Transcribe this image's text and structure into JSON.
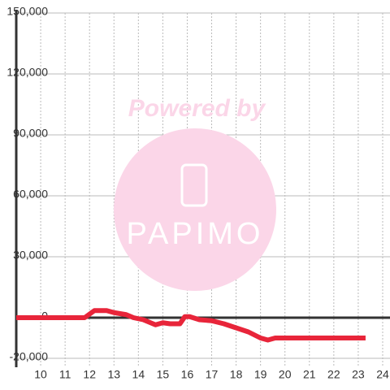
{
  "chart_data": {
    "type": "line",
    "series": [
      {
        "color": "#e8253a",
        "x": [
          9,
          11.8,
          12.2,
          12.7,
          13,
          13.5,
          13.8,
          14.2,
          14.7,
          15,
          15.3,
          15.7,
          15.9,
          16.1,
          16.5,
          17,
          17.5,
          18,
          18.5,
          19,
          19.3,
          19.6,
          20,
          23.3
        ],
        "values": [
          0,
          0,
          3500,
          3500,
          2500,
          1500,
          0,
          -1000,
          -3500,
          -2500,
          -3000,
          -3000,
          500,
          500,
          -1000,
          -1500,
          -3000,
          -5000,
          -7000,
          -10000,
          -11000,
          -10000,
          -10000,
          -10000
        ]
      }
    ],
    "xlim": [
      9,
      24.3
    ],
    "xticks": [
      10,
      11,
      12,
      13,
      14,
      15,
      16,
      17,
      18,
      19,
      20,
      21,
      22,
      23,
      24
    ],
    "ylim": [
      -20000,
      150000
    ],
    "yticks": [
      {
        "value": -20000,
        "label": "-20,000"
      },
      0,
      {
        "value": 30000,
        "label": "30,000"
      },
      {
        "value": 60000,
        "label": "60,000"
      },
      {
        "value": 90000,
        "label": "90,000"
      },
      {
        "value": 120000,
        "label": "120,000"
      },
      {
        "value": 150000,
        "label": "150,000"
      }
    ],
    "grid": true
  },
  "watermark": {
    "line1": "Powered by",
    "line2": "PAPIMO"
  }
}
